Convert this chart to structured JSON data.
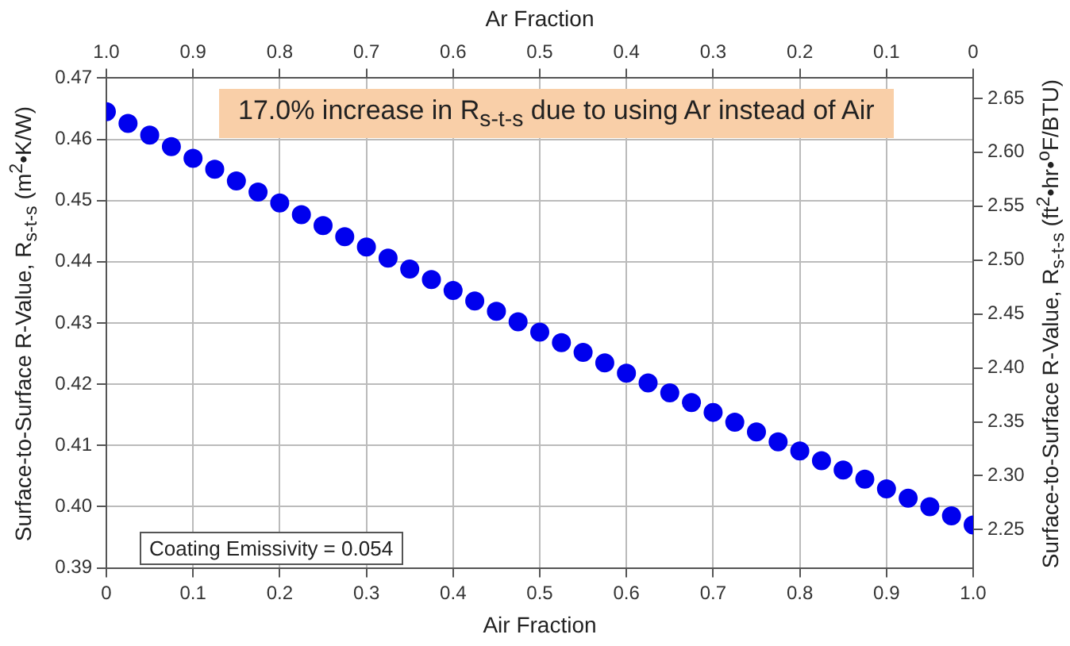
{
  "chart_data": {
    "type": "scatter",
    "marker": "circle",
    "grid": true,
    "legend": false,
    "xlabel": "Air Fraction",
    "x2label": "Ar Fraction",
    "ylabel": "Surface-to-Surface R-Value, R$_{s-t-s}$ (m$^{2}$•K/W)",
    "y2label": "Surface-to-Surface R-Value, R$_{s-t-s}$ (ft$^{2}$•hr•$^{o}$F/BTU)",
    "annotations": [
      "17.0% increase in R$_{s-t-s}$ due to using Ar instead of Air",
      "Coating Emissivity = 0.054"
    ],
    "color": "#0000ee",
    "x": [
      0,
      0.025,
      0.05,
      0.075,
      0.1,
      0.125,
      0.15,
      0.175,
      0.2,
      0.225,
      0.25,
      0.275,
      0.3,
      0.325,
      0.35,
      0.375,
      0.4,
      0.425,
      0.45,
      0.475,
      0.5,
      0.525,
      0.55,
      0.575,
      0.6,
      0.625,
      0.65,
      0.675,
      0.7,
      0.725,
      0.75,
      0.775,
      0.8,
      0.825,
      0.85,
      0.875,
      0.9,
      0.925,
      0.95,
      0.975,
      1
    ],
    "values": [
      0.4645,
      0.4626,
      0.4607,
      0.4588,
      0.4569,
      0.4551,
      0.4532,
      0.4514,
      0.4496,
      0.4477,
      0.4459,
      0.4441,
      0.4424,
      0.4406,
      0.4388,
      0.4371,
      0.4353,
      0.4336,
      0.4319,
      0.4302,
      0.4285,
      0.4268,
      0.4252,
      0.4235,
      0.4218,
      0.4202,
      0.4186,
      0.417,
      0.4154,
      0.4138,
      0.4122,
      0.4106,
      0.4091,
      0.4075,
      0.406,
      0.4045,
      0.4029,
      0.4014,
      0.4,
      0.3985,
      0.397
    ],
    "xlim": [
      0,
      1
    ],
    "xticks": [
      0,
      0.1,
      0.2,
      0.3,
      0.4,
      0.5,
      0.6,
      0.7,
      0.8,
      0.9,
      {
        "value": 1,
        "label": "1.0"
      }
    ],
    "x2lim": [
      1,
      0
    ],
    "x2ticks": [
      {
        "value": 1,
        "label": "1.0"
      },
      0.9,
      0.8,
      0.7,
      0.6,
      0.5,
      0.4,
      0.3,
      0.2,
      0.1,
      0
    ],
    "ylim": [
      0.39,
      0.47
    ],
    "yticks": [
      0.39,
      {
        "value": 0.4,
        "label": "0.40"
      },
      0.41,
      0.42,
      0.43,
      0.44,
      0.45,
      0.46,
      0.47
    ],
    "y2lim": [
      2.2145,
      2.6688
    ],
    "y2ticks": [
      2.25,
      {
        "value": 2.3,
        "label": "2.30"
      },
      2.35,
      {
        "value": 2.4,
        "label": "2.40"
      },
      2.45,
      {
        "value": 2.5,
        "label": "2.50"
      },
      2.55,
      {
        "value": 2.6,
        "label": "2.60"
      },
      2.65
    ]
  }
}
